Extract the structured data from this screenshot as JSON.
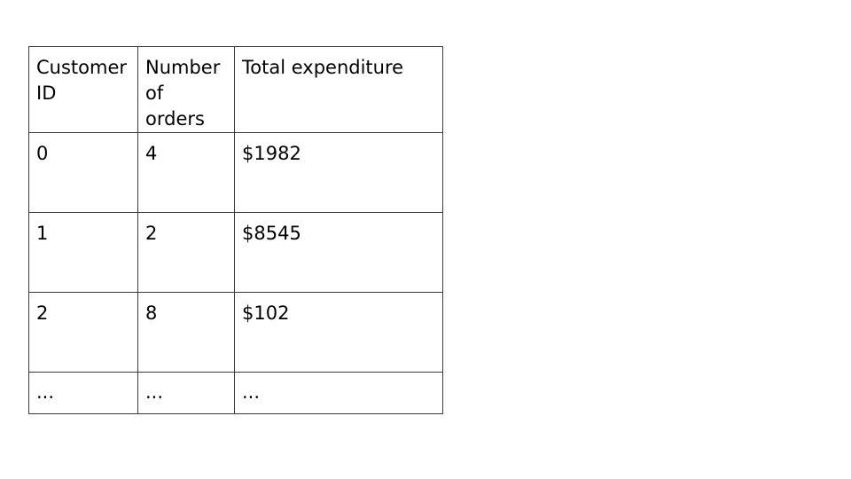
{
  "table": {
    "headers": [
      "Customer ID",
      "Number of orders",
      "Total expenditure"
    ],
    "rows": [
      [
        "0",
        "4",
        "$1982"
      ],
      [
        "1",
        "2",
        "$8545"
      ],
      [
        "2",
        "8",
        "$102"
      ],
      [
        "...",
        "...",
        "..."
      ]
    ]
  }
}
